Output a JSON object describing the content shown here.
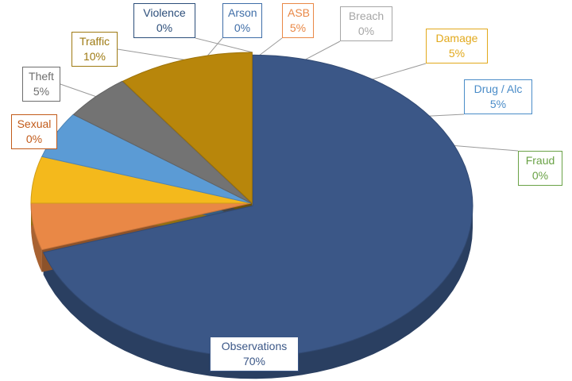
{
  "chart_data": {
    "type": "pie",
    "title": "",
    "style": "3d-exploded-pie",
    "slices": [
      {
        "label": "Observations",
        "percent_text": "70%",
        "value": 70,
        "color": "#3B5787",
        "label_color": "#3B5787"
      },
      {
        "label": "Arson",
        "percent_text": "0%",
        "value": 0,
        "color": "#3F6EA8",
        "label_color": "#3F6EA8"
      },
      {
        "label": "ASB",
        "percent_text": "5%",
        "value": 5,
        "color": "#E98846",
        "label_color": "#E98846"
      },
      {
        "label": "Breach",
        "percent_text": "0%",
        "value": 0,
        "color": "#A6A6A6",
        "label_color": "#A6A6A6"
      },
      {
        "label": "Damage",
        "percent_text": "5%",
        "value": 5,
        "color": "#F4B91C",
        "label_color": "#E2A91C"
      },
      {
        "label": "Drug / Alc",
        "percent_text": "5%",
        "value": 5,
        "color": "#5B9BD5",
        "label_color": "#4A8CC8"
      },
      {
        "label": "Fraud",
        "percent_text": "0%",
        "value": 0,
        "color": "#6AA246",
        "label_color": "#6AA246"
      },
      {
        "label": "Sexual",
        "percent_text": "0%",
        "value": 0,
        "color": "#C25B1A",
        "label_color": "#C25B1A"
      },
      {
        "label": "Theft",
        "percent_text": "5%",
        "value": 5,
        "color": "#737373",
        "label_color": "#6E6E6E"
      },
      {
        "label": "Traffic",
        "percent_text": "10%",
        "value": 10,
        "color": "#B8860B",
        "label_color": "#9E7A12"
      },
      {
        "label": "Violence",
        "percent_text": "0%",
        "value": 0,
        "color": "#2C4E7A",
        "label_color": "#2C4E7A"
      }
    ]
  }
}
